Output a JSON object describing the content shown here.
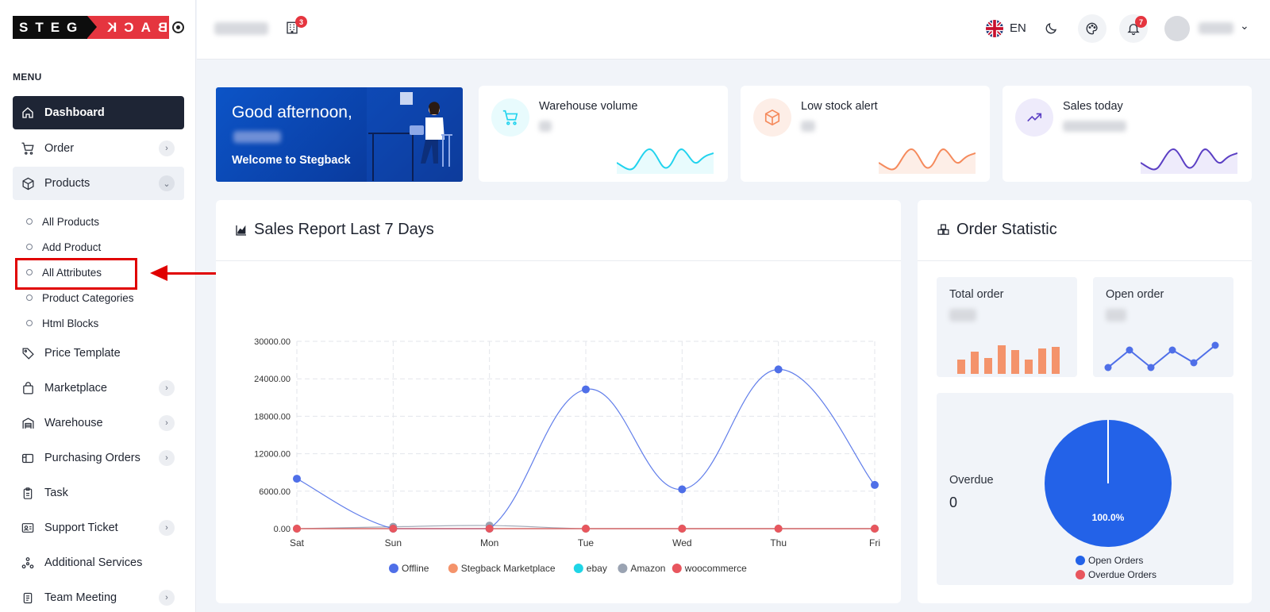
{
  "logo": {
    "left_text": "STEG",
    "right_text": "BACK"
  },
  "sidebar": {
    "menu_title": "MENU",
    "items": [
      {
        "label": "Dashboard",
        "icon": "home-icon",
        "active": true
      },
      {
        "label": "Order",
        "icon": "cart-icon",
        "has_chevron": true
      },
      {
        "label": "Products",
        "icon": "box-icon",
        "expanded": true
      },
      {
        "label": "Price Template",
        "icon": "tag-icon"
      },
      {
        "label": "Marketplace",
        "icon": "shopping-bag-icon",
        "has_chevron": true
      },
      {
        "label": "Warehouse",
        "icon": "warehouse-icon",
        "has_chevron": true
      },
      {
        "label": "Purchasing Orders",
        "icon": "purchase-icon",
        "has_chevron": true
      },
      {
        "label": "Task",
        "icon": "clipboard-icon"
      },
      {
        "label": "Support Ticket",
        "icon": "contact-card-icon",
        "has_chevron": true
      },
      {
        "label": "Additional Services",
        "icon": "services-icon"
      },
      {
        "label": "Team Meeting",
        "icon": "document-icon",
        "has_chevron": true
      }
    ],
    "product_subitems": [
      "All Products",
      "Add Product",
      "All Attributes",
      "Product Categories",
      "Html Blocks"
    ]
  },
  "header": {
    "building_badge": "3",
    "language": "EN",
    "notification_badge": "7"
  },
  "welcome": {
    "greeting": "Good afternoon,",
    "subtitle": "Welcome to Stegback"
  },
  "stats": [
    {
      "label": "Warehouse volume",
      "color": "#22d3ee",
      "bg": "#e8fbfd"
    },
    {
      "label": "Low stock alert",
      "color": "#f58a5c",
      "bg": "#fdeee7"
    },
    {
      "label": "Sales today",
      "color": "#5b3fc4",
      "bg": "#eeebfb"
    }
  ],
  "sales_report": {
    "title": "Sales Report Last 7 Days",
    "chart_data": {
      "type": "line",
      "categories": [
        "Sat",
        "Sun",
        "Mon",
        "Tue",
        "Wed",
        "Thu",
        "Fri"
      ],
      "y_ticks": [
        "30000.00",
        "24000.00",
        "18000.00",
        "12000.00",
        "6000.00",
        "0.00"
      ],
      "ylim": [
        0,
        30000
      ],
      "grid": true,
      "legend_position": "bottom",
      "series": [
        {
          "name": "Offline",
          "color": "#4f6fe8",
          "values": [
            8000,
            0,
            0,
            22300,
            6300,
            25500,
            7000
          ]
        },
        {
          "name": "Stegback Marketplace",
          "color": "#f4936b",
          "values": [
            0,
            0,
            0,
            0,
            0,
            0,
            0
          ]
        },
        {
          "name": "ebay",
          "color": "#1fd5e6",
          "values": [
            0,
            0,
            0,
            0,
            0,
            0,
            0
          ]
        },
        {
          "name": "Amazon",
          "color": "#9aa3b2",
          "values": [
            0,
            300,
            500,
            0,
            0,
            0,
            0
          ]
        },
        {
          "name": "woocommerce",
          "color": "#e8565e",
          "values": [
            0,
            0,
            0,
            0,
            0,
            0,
            0
          ]
        }
      ]
    }
  },
  "order_statistic": {
    "title": "Order Statistic",
    "total_order_label": "Total order",
    "open_order_label": "Open order",
    "overdue_label": "Overdue",
    "overdue_value": "0",
    "pie_chart": {
      "type": "pie",
      "slices": [
        {
          "name": "Open Orders",
          "value": 100.0,
          "color": "#2362e8"
        },
        {
          "name": "Overdue Orders",
          "value": 0.0,
          "color": "#e8565e"
        }
      ],
      "slice_label": "100.0%",
      "legend_position": "bottom"
    }
  }
}
